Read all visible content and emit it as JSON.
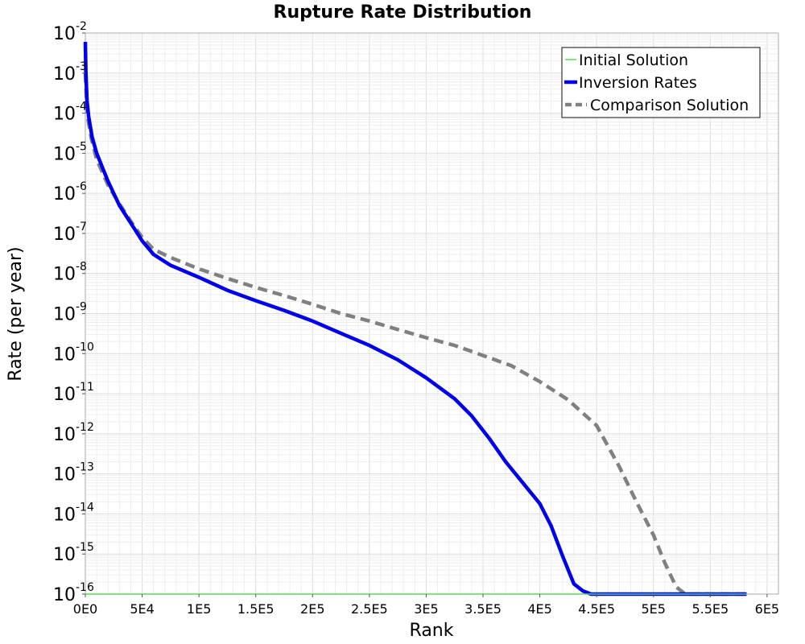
{
  "chart_data": {
    "type": "line",
    "title": "Rupture Rate Distribution",
    "xlabel": "Rank",
    "ylabel": "Rate (per year)",
    "xlim": [
      0,
      610000
    ],
    "ylim_log10": [
      -16,
      -2
    ],
    "y_scale": "log",
    "grid": true,
    "legend_position": "top-right",
    "x_ticks": [
      {
        "value": 0,
        "label": "0E0"
      },
      {
        "value": 50000,
        "label": "5E4"
      },
      {
        "value": 100000,
        "label": "1E5"
      },
      {
        "value": 150000,
        "label": "1.5E5"
      },
      {
        "value": 200000,
        "label": "2E5"
      },
      {
        "value": 250000,
        "label": "2.5E5"
      },
      {
        "value": 300000,
        "label": "3E5"
      },
      {
        "value": 350000,
        "label": "3.5E5"
      },
      {
        "value": 400000,
        "label": "4E5"
      },
      {
        "value": 450000,
        "label": "4.5E5"
      },
      {
        "value": 500000,
        "label": "5E5"
      },
      {
        "value": 550000,
        "label": "5.5E5"
      },
      {
        "value": 600000,
        "label": "6E5"
      }
    ],
    "y_ticks": [
      {
        "value": 1e-16,
        "base": "10",
        "exp": "-16"
      },
      {
        "value": 1e-15,
        "base": "10",
        "exp": "-15"
      },
      {
        "value": 1e-14,
        "base": "10",
        "exp": "-14"
      },
      {
        "value": 1e-13,
        "base": "10",
        "exp": "-13"
      },
      {
        "value": 1e-12,
        "base": "10",
        "exp": "-12"
      },
      {
        "value": 1e-11,
        "base": "10",
        "exp": "-11"
      },
      {
        "value": 1e-10,
        "base": "10",
        "exp": "-10"
      },
      {
        "value": 1e-09,
        "base": "10",
        "exp": "-9"
      },
      {
        "value": 1e-08,
        "base": "10",
        "exp": "-8"
      },
      {
        "value": 1e-07,
        "base": "10",
        "exp": "-7"
      },
      {
        "value": 1e-06,
        "base": "10",
        "exp": "-6"
      },
      {
        "value": 1e-05,
        "base": "10",
        "exp": "-5"
      },
      {
        "value": 0.0001,
        "base": "10",
        "exp": "-4"
      },
      {
        "value": 0.001,
        "base": "10",
        "exp": "-3"
      },
      {
        "value": 0.01,
        "base": "10",
        "exp": "-2"
      }
    ],
    "series": [
      {
        "name": "Initial Solution",
        "color": "#55dd55",
        "style": "solid-thin",
        "points": [
          [
            0,
            1e-16
          ],
          [
            582000,
            1e-16
          ]
        ]
      },
      {
        "name": "Inversion Rates",
        "color": "#0000ee",
        "style": "solid-thick",
        "points": [
          [
            0,
            0.006
          ],
          [
            500,
            0.001
          ],
          [
            1500,
            0.0002
          ],
          [
            3000,
            8e-05
          ],
          [
            6000,
            2.5e-05
          ],
          [
            10000,
            1e-05
          ],
          [
            20000,
            2e-06
          ],
          [
            30000,
            5e-07
          ],
          [
            40000,
            1.8e-07
          ],
          [
            50000,
            6.5e-08
          ],
          [
            60000,
            3e-08
          ],
          [
            75000,
            1.6e-08
          ],
          [
            100000,
            8e-09
          ],
          [
            125000,
            3.8e-09
          ],
          [
            150000,
            2.1e-09
          ],
          [
            175000,
            1.2e-09
          ],
          [
            200000,
            6.5e-10
          ],
          [
            225000,
            3.2e-10
          ],
          [
            250000,
            1.6e-10
          ],
          [
            275000,
            7e-11
          ],
          [
            300000,
            2.5e-11
          ],
          [
            325000,
            7.5e-12
          ],
          [
            340000,
            2.8e-12
          ],
          [
            355000,
            8e-13
          ],
          [
            370000,
            2e-13
          ],
          [
            385000,
            6e-14
          ],
          [
            400000,
            1.8e-14
          ],
          [
            410000,
            5e-15
          ],
          [
            420000,
            9e-16
          ],
          [
            430000,
            1.8e-16
          ],
          [
            438000,
            1.2e-16
          ],
          [
            445000,
            1e-16
          ],
          [
            582000,
            1e-16
          ]
        ]
      },
      {
        "name": "Comparison Solution",
        "color": "#808080",
        "style": "dashed-thick",
        "points": [
          [
            0,
            0.001
          ],
          [
            1500,
            0.0001
          ],
          [
            5000,
            2.5e-05
          ],
          [
            10000,
            7e-06
          ],
          [
            20000,
            1.6e-06
          ],
          [
            30000,
            5.5e-07
          ],
          [
            40000,
            2e-07
          ],
          [
            50000,
            8e-08
          ],
          [
            60000,
            4e-08
          ],
          [
            75000,
            2.5e-08
          ],
          [
            100000,
            1.3e-08
          ],
          [
            125000,
            7.5e-09
          ],
          [
            150000,
            4.5e-09
          ],
          [
            175000,
            2.8e-09
          ],
          [
            200000,
            1.7e-09
          ],
          [
            225000,
            1e-09
          ],
          [
            250000,
            6.5e-10
          ],
          [
            275000,
            4e-10
          ],
          [
            300000,
            2.5e-10
          ],
          [
            325000,
            1.6e-10
          ],
          [
            350000,
            9e-11
          ],
          [
            375000,
            5e-11
          ],
          [
            400000,
            2e-11
          ],
          [
            425000,
            7e-12
          ],
          [
            450000,
            1.6e-12
          ],
          [
            470000,
            1.5e-13
          ],
          [
            485000,
            2e-14
          ],
          [
            500000,
            3e-15
          ],
          [
            510000,
            6e-16
          ],
          [
            520000,
            1.5e-16
          ],
          [
            528000,
            1e-16
          ],
          [
            582000,
            1e-16
          ]
        ]
      }
    ]
  }
}
